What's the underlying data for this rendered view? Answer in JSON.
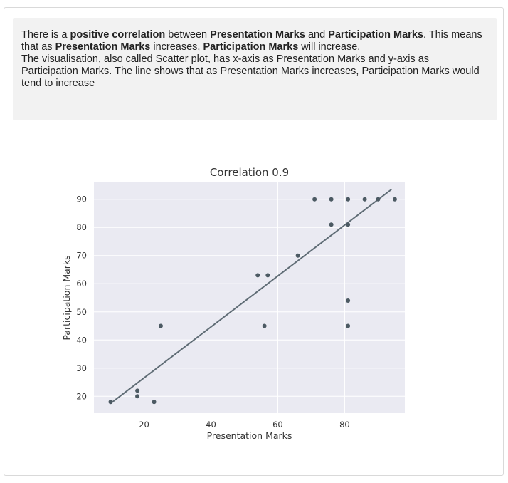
{
  "description": {
    "line1_a": "There is a ",
    "line1_b": "positive correlation",
    "line1_c": " between ",
    "line1_d": "Presentation Marks",
    "line1_e": " and ",
    "line1_f": "Participation Marks",
    "line1_g": ". This means that as ",
    "line1_h": "Presentation Marks",
    "line1_i": " increases, ",
    "line1_j": "Participation Marks",
    "line1_k": " will increase.",
    "line2": "The visualisation, also called Scatter plot, has x-axis as Presentation Marks and y-axis as Participation Marks. The line shows that as Presentation Marks increases, Participation Marks would tend to increase"
  },
  "colors": {
    "plot_bg": "#eaeaf2",
    "grid": "#ffffff",
    "point": "#4c5a63",
    "line": "#5f6c75",
    "text": "#333333"
  },
  "chart_data": {
    "type": "scatter",
    "title": "Correlation 0.9",
    "xlabel": "Presentation Marks",
    "ylabel": "Participation Marks",
    "xlim": [
      5,
      98
    ],
    "ylim": [
      14,
      96
    ],
    "xticks": [
      20,
      40,
      60,
      80
    ],
    "yticks": [
      20,
      30,
      40,
      50,
      60,
      70,
      80,
      90
    ],
    "grid": true,
    "points": [
      {
        "x": 10,
        "y": 18
      },
      {
        "x": 18,
        "y": 20
      },
      {
        "x": 18,
        "y": 22
      },
      {
        "x": 23,
        "y": 18
      },
      {
        "x": 25,
        "y": 45
      },
      {
        "x": 54,
        "y": 63
      },
      {
        "x": 56,
        "y": 45
      },
      {
        "x": 57,
        "y": 63
      },
      {
        "x": 66,
        "y": 70
      },
      {
        "x": 71,
        "y": 90
      },
      {
        "x": 76,
        "y": 90
      },
      {
        "x": 76,
        "y": 81
      },
      {
        "x": 81,
        "y": 90
      },
      {
        "x": 81,
        "y": 81
      },
      {
        "x": 81,
        "y": 54
      },
      {
        "x": 81,
        "y": 45
      },
      {
        "x": 86,
        "y": 90
      },
      {
        "x": 90,
        "y": 90
      },
      {
        "x": 95,
        "y": 90
      }
    ],
    "regression_line": [
      {
        "x": 10,
        "y": 17.5
      },
      {
        "x": 94,
        "y": 93.5
      }
    ]
  }
}
